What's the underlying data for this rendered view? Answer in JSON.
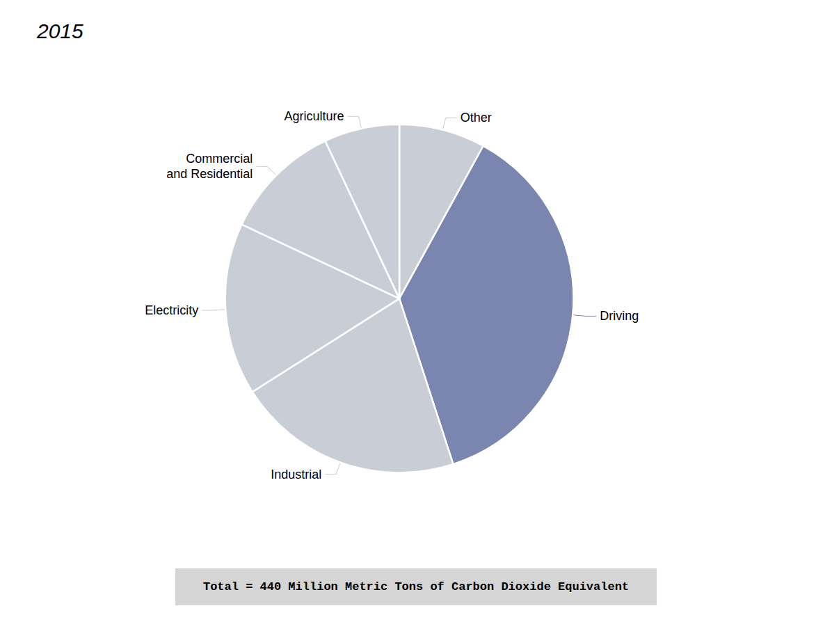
{
  "chart_data": {
    "type": "pie",
    "title": "2015",
    "categories": [
      "Other",
      "Driving",
      "Industrial",
      "Electricity",
      "Commercial\nand Residential",
      "Agriculture"
    ],
    "values": [
      8,
      37,
      21,
      16,
      11,
      7
    ],
    "colors": [
      "#C8CDD6",
      "#7B86B0",
      "#C8CDD6",
      "#C8CDD6",
      "#C8CDD6",
      "#C8CDD6"
    ],
    "annotations": [
      "Total = 440 Million Metric Tons of Carbon Dioxide Equivalent"
    ]
  }
}
